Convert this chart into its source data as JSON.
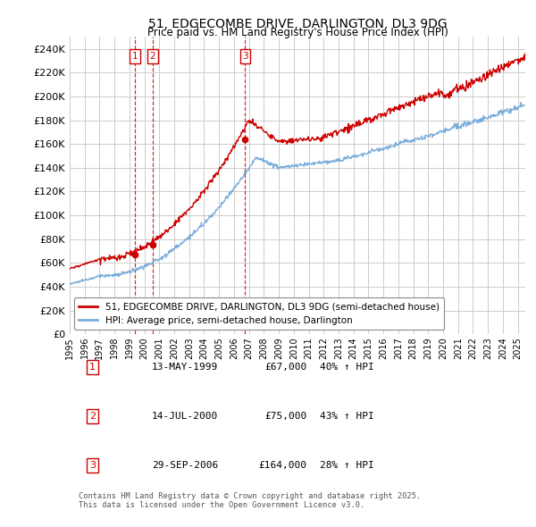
{
  "title": "51, EDGECOMBE DRIVE, DARLINGTON, DL3 9DG",
  "subtitle": "Price paid vs. HM Land Registry's House Price Index (HPI)",
  "ylim": [
    0,
    250000
  ],
  "yticks": [
    0,
    20000,
    40000,
    60000,
    80000,
    100000,
    120000,
    140000,
    160000,
    180000,
    200000,
    220000,
    240000
  ],
  "background_color": "#ffffff",
  "grid_color": "#cccccc",
  "sale_color": "#cc0000",
  "hpi_color": "#7aaddb",
  "sale_dates": [
    1999.36,
    2000.54,
    2006.75
  ],
  "sale_prices": [
    67000,
    75000,
    164000
  ],
  "legend_sale": "51, EDGECOMBE DRIVE, DARLINGTON, DL3 9DG (semi-detached house)",
  "legend_hpi": "HPI: Average price, semi-detached house, Darlington",
  "transactions": [
    {
      "num": 1,
      "date": "13-MAY-1999",
      "price": "£67,000",
      "hpi": "40% ↑ HPI"
    },
    {
      "num": 2,
      "date": "14-JUL-2000",
      "price": "£75,000",
      "hpi": "43% ↑ HPI"
    },
    {
      "num": 3,
      "date": "29-SEP-2006",
      "price": "£164,000",
      "hpi": "28% ↑ HPI"
    }
  ],
  "footer1": "Contains HM Land Registry data © Crown copyright and database right 2025.",
  "footer2": "This data is licensed under the Open Government Licence v3.0.",
  "xmin": 1995,
  "xmax": 2025.5
}
